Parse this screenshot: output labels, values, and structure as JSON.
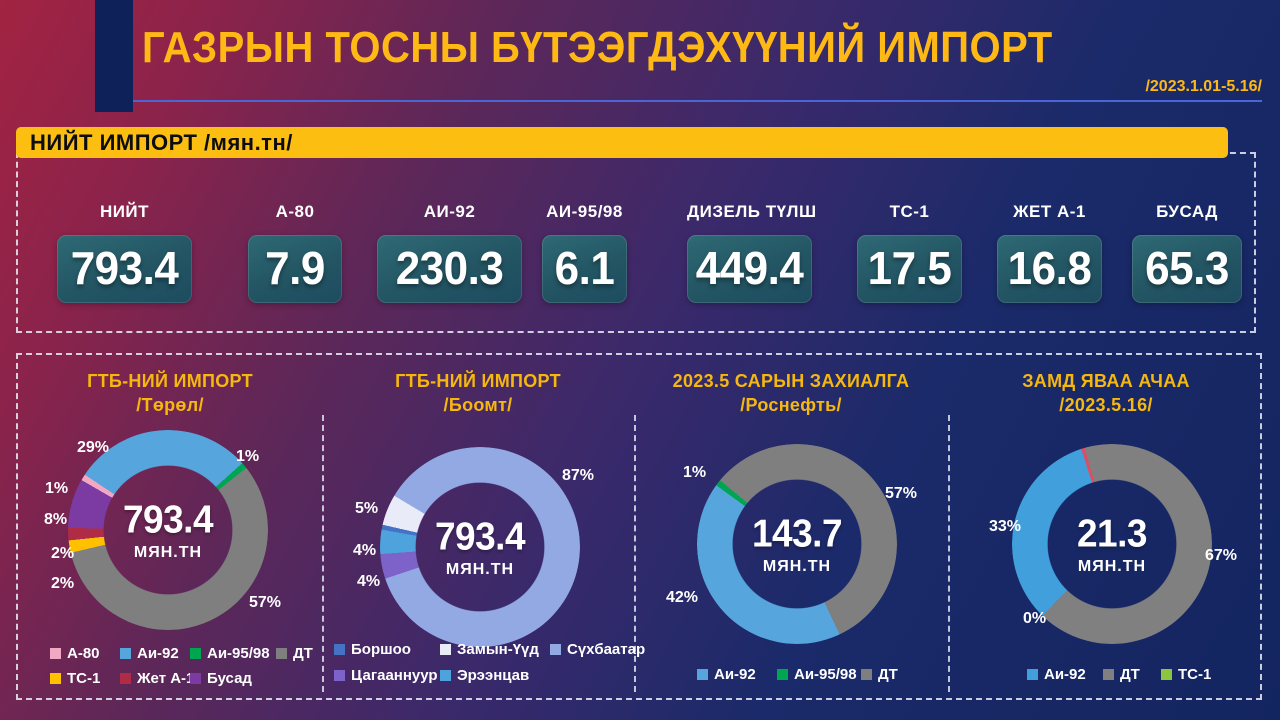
{
  "header": {
    "title": "ГАЗРЫН ТОСНЫ БҮТЭЭГДЭХҮҮНИЙ ИМПОРТ",
    "date_range": "/2023.1.01-5.16/"
  },
  "banner": {
    "text": "НИЙТ ИМПОРТ /мян.тн/"
  },
  "cards": [
    {
      "label": "НИЙТ",
      "value": "793.4"
    },
    {
      "label": "А-80",
      "value": "7.9"
    },
    {
      "label": "АИ-92",
      "value": "230.3"
    },
    {
      "label": "АИ-95/98",
      "value": "6.1"
    },
    {
      "label": "ДИЗЕЛЬ ТҮЛШ",
      "value": "449.4"
    },
    {
      "label": "ТС-1",
      "value": "17.5"
    },
    {
      "label": "ЖЕТ А-1",
      "value": "16.8"
    },
    {
      "label": "БУСАД",
      "value": "65.3"
    }
  ],
  "colors": {
    "accent_yellow": "#FCBE11",
    "title_yellow": "#FFB915",
    "header_line_blue": "#4A66D6",
    "card_teal_top": "#2E6A75",
    "card_teal_bottom": "#1D4C60",
    "bg_red": "#A22342",
    "bg_navy": "#132560"
  },
  "chart_data": [
    {
      "type": "pie",
      "title": "ГТБ-НИЙ ИМПОРТ",
      "subtitle": "/Төрөл/",
      "center_value": "793.4",
      "center_unit": "МЯН.ТН",
      "start_angle": 300,
      "slices": [
        {
          "label": "А-80",
          "value": 1,
          "pct": "1%",
          "color": "#F2A7C3"
        },
        {
          "label": "Аи-92",
          "value": 29,
          "pct": "29%",
          "color": "#56A5DD"
        },
        {
          "label": "Аи-95/98",
          "value": 1,
          "pct": "1%",
          "color": "#00A551"
        },
        {
          "label": "ДТ",
          "value": 57,
          "pct": "57%",
          "color": "#7F7F7F"
        },
        {
          "label": "ТС-1",
          "value": 2,
          "pct": "2%",
          "color": "#FFC000"
        },
        {
          "label": "Жет А-1",
          "value": 2,
          "pct": "2%",
          "color": "#AF2B46"
        },
        {
          "label": "Бусад",
          "value": 8,
          "pct": "8%",
          "color": "#7B3BA3"
        }
      ],
      "legend": [
        {
          "label": "А-80",
          "color": "#F2A7C3"
        },
        {
          "label": "Аи-92",
          "color": "#56A5DD"
        },
        {
          "label": "Аи-95/98",
          "color": "#00A551"
        },
        {
          "label": "ДТ",
          "color": "#7F7F7F"
        },
        {
          "label": "ТС-1",
          "color": "#FFC000"
        },
        {
          "label": "Жет А-1",
          "color": "#AF2B46"
        },
        {
          "label": "Бусад",
          "color": "#7B3BA3"
        }
      ]
    },
    {
      "type": "pie",
      "title": "ГТБ-НИЙ ИМПОРТ",
      "subtitle": "/Боомт/",
      "center_value": "793.4",
      "center_unit": "МЯН.ТН",
      "start_angle": 280,
      "slices": [
        {
          "label": "Боршоо",
          "value": 0,
          "render": 0.8,
          "pct": "",
          "color": "#4472C4"
        },
        {
          "label": "Замын-Үүд",
          "value": 5,
          "pct": "5%",
          "color": "#E9EBF9"
        },
        {
          "label": "Сүхбаатар",
          "value": 87,
          "render": 86.3,
          "pct": "87%",
          "color": "#93A9E3"
        },
        {
          "label": "Цагааннуур",
          "value": 4,
          "pct": "4%",
          "color": "#7D62C9"
        },
        {
          "label": "Эрээнцав",
          "value": 4,
          "render": 3.9,
          "pct": "4%",
          "color": "#4FA3DC"
        }
      ],
      "legend": [
        {
          "label": "Боршоо",
          "color": "#4472C4"
        },
        {
          "label": "Замын-Үүд",
          "color": "#E9EBF9"
        },
        {
          "label": "Сүхбаатар",
          "color": "#93A9E3"
        },
        {
          "label": "Цагааннуур",
          "color": "#7D62C9"
        },
        {
          "label": "Эрээнцав",
          "color": "#4FA3DC"
        }
      ]
    },
    {
      "type": "pie",
      "title": "2023.5 САРЫН ЗАХИАЛГА",
      "subtitle": "/Роснефть/",
      "center_value": "143.7",
      "center_unit": "МЯН.ТН",
      "start_angle": 306,
      "slices": [
        {
          "label": "Аи-95/98",
          "value": 1,
          "pct": "1%",
          "color": "#00A551"
        },
        {
          "label": "ДТ",
          "value": 57,
          "pct": "57%",
          "color": "#7F7F7F"
        },
        {
          "label": "Аи-92",
          "value": 42,
          "pct": "42%",
          "color": "#56A5DD"
        }
      ],
      "legend": [
        {
          "label": "Аи-92",
          "color": "#56A5DD"
        },
        {
          "label": "Аи-95/98",
          "color": "#00A551"
        },
        {
          "label": "ДТ",
          "color": "#7F7F7F"
        }
      ]
    },
    {
      "type": "pie",
      "title": "ЗАМД ЯВАА АЧАА",
      "subtitle": "/2023.5.16/",
      "center_value": "21.3",
      "center_unit": "МЯН.ТН",
      "start_angle": 342,
      "slices": [
        {
          "label": "",
          "value": 0.6,
          "pct": "",
          "color": "#D94F63"
        },
        {
          "label": "ДТ",
          "value": 67,
          "render": 66.7,
          "pct": "67%",
          "color": "#808080"
        },
        {
          "label": "ТС-1",
          "value": 0,
          "render": 0,
          "pct": "0%",
          "color": "#8CC63E"
        },
        {
          "label": "Аи-92",
          "value": 33,
          "render": 32.7,
          "pct": "33%",
          "color": "#41A0DC"
        }
      ],
      "legend": [
        {
          "label": "Аи-92",
          "color": "#41A0DC"
        },
        {
          "label": "ДТ",
          "color": "#808080"
        },
        {
          "label": "ТС-1",
          "color": "#8CC63E"
        }
      ]
    }
  ]
}
